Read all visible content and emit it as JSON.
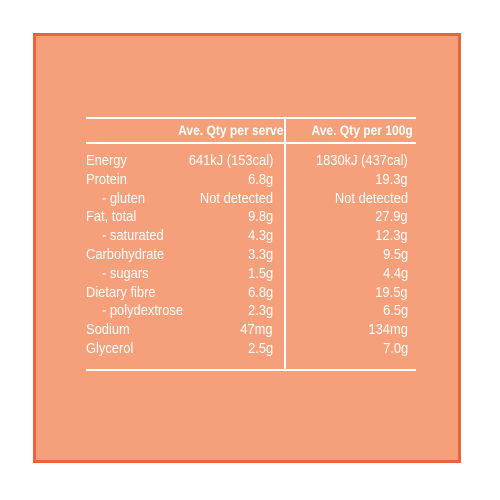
{
  "headers": {
    "per_serve": "Ave. Qty per serve",
    "per_100g": "Ave. Qty per 100g"
  },
  "rows": [
    {
      "label": "Energy",
      "sub": false,
      "serve": "641kJ (153cal)",
      "per100": "1830kJ (437cal)"
    },
    {
      "label": "Protein",
      "sub": false,
      "serve": "6.8g",
      "per100": "19.3g"
    },
    {
      "label": "- gluten",
      "sub": true,
      "serve": "Not detected",
      "per100": "Not detected"
    },
    {
      "label": "Fat, total",
      "sub": false,
      "serve": "9.8g",
      "per100": "27.9g"
    },
    {
      "label": "- saturated",
      "sub": true,
      "serve": "4.3g",
      "per100": "12.3g"
    },
    {
      "label": "Carbohydrate",
      "sub": false,
      "serve": "3.3g",
      "per100": "9.5g"
    },
    {
      "label": "- sugars",
      "sub": true,
      "serve": "1.5g",
      "per100": "4.4g"
    },
    {
      "label": "Dietary fibre",
      "sub": false,
      "serve": "6.8g",
      "per100": "19.5g"
    },
    {
      "label": "- polydextrose",
      "sub": true,
      "serve": "2.3g",
      "per100": "6.5g"
    },
    {
      "label": "Sodium",
      "sub": false,
      "serve": "47mg",
      "per100": "134mg"
    },
    {
      "label": "Glycerol",
      "sub": false,
      "serve": "2.5g",
      "per100": "7.0g"
    }
  ],
  "colors": {
    "background": "#f5a07a",
    "border": "#e8643c",
    "text": "#ffffff"
  }
}
